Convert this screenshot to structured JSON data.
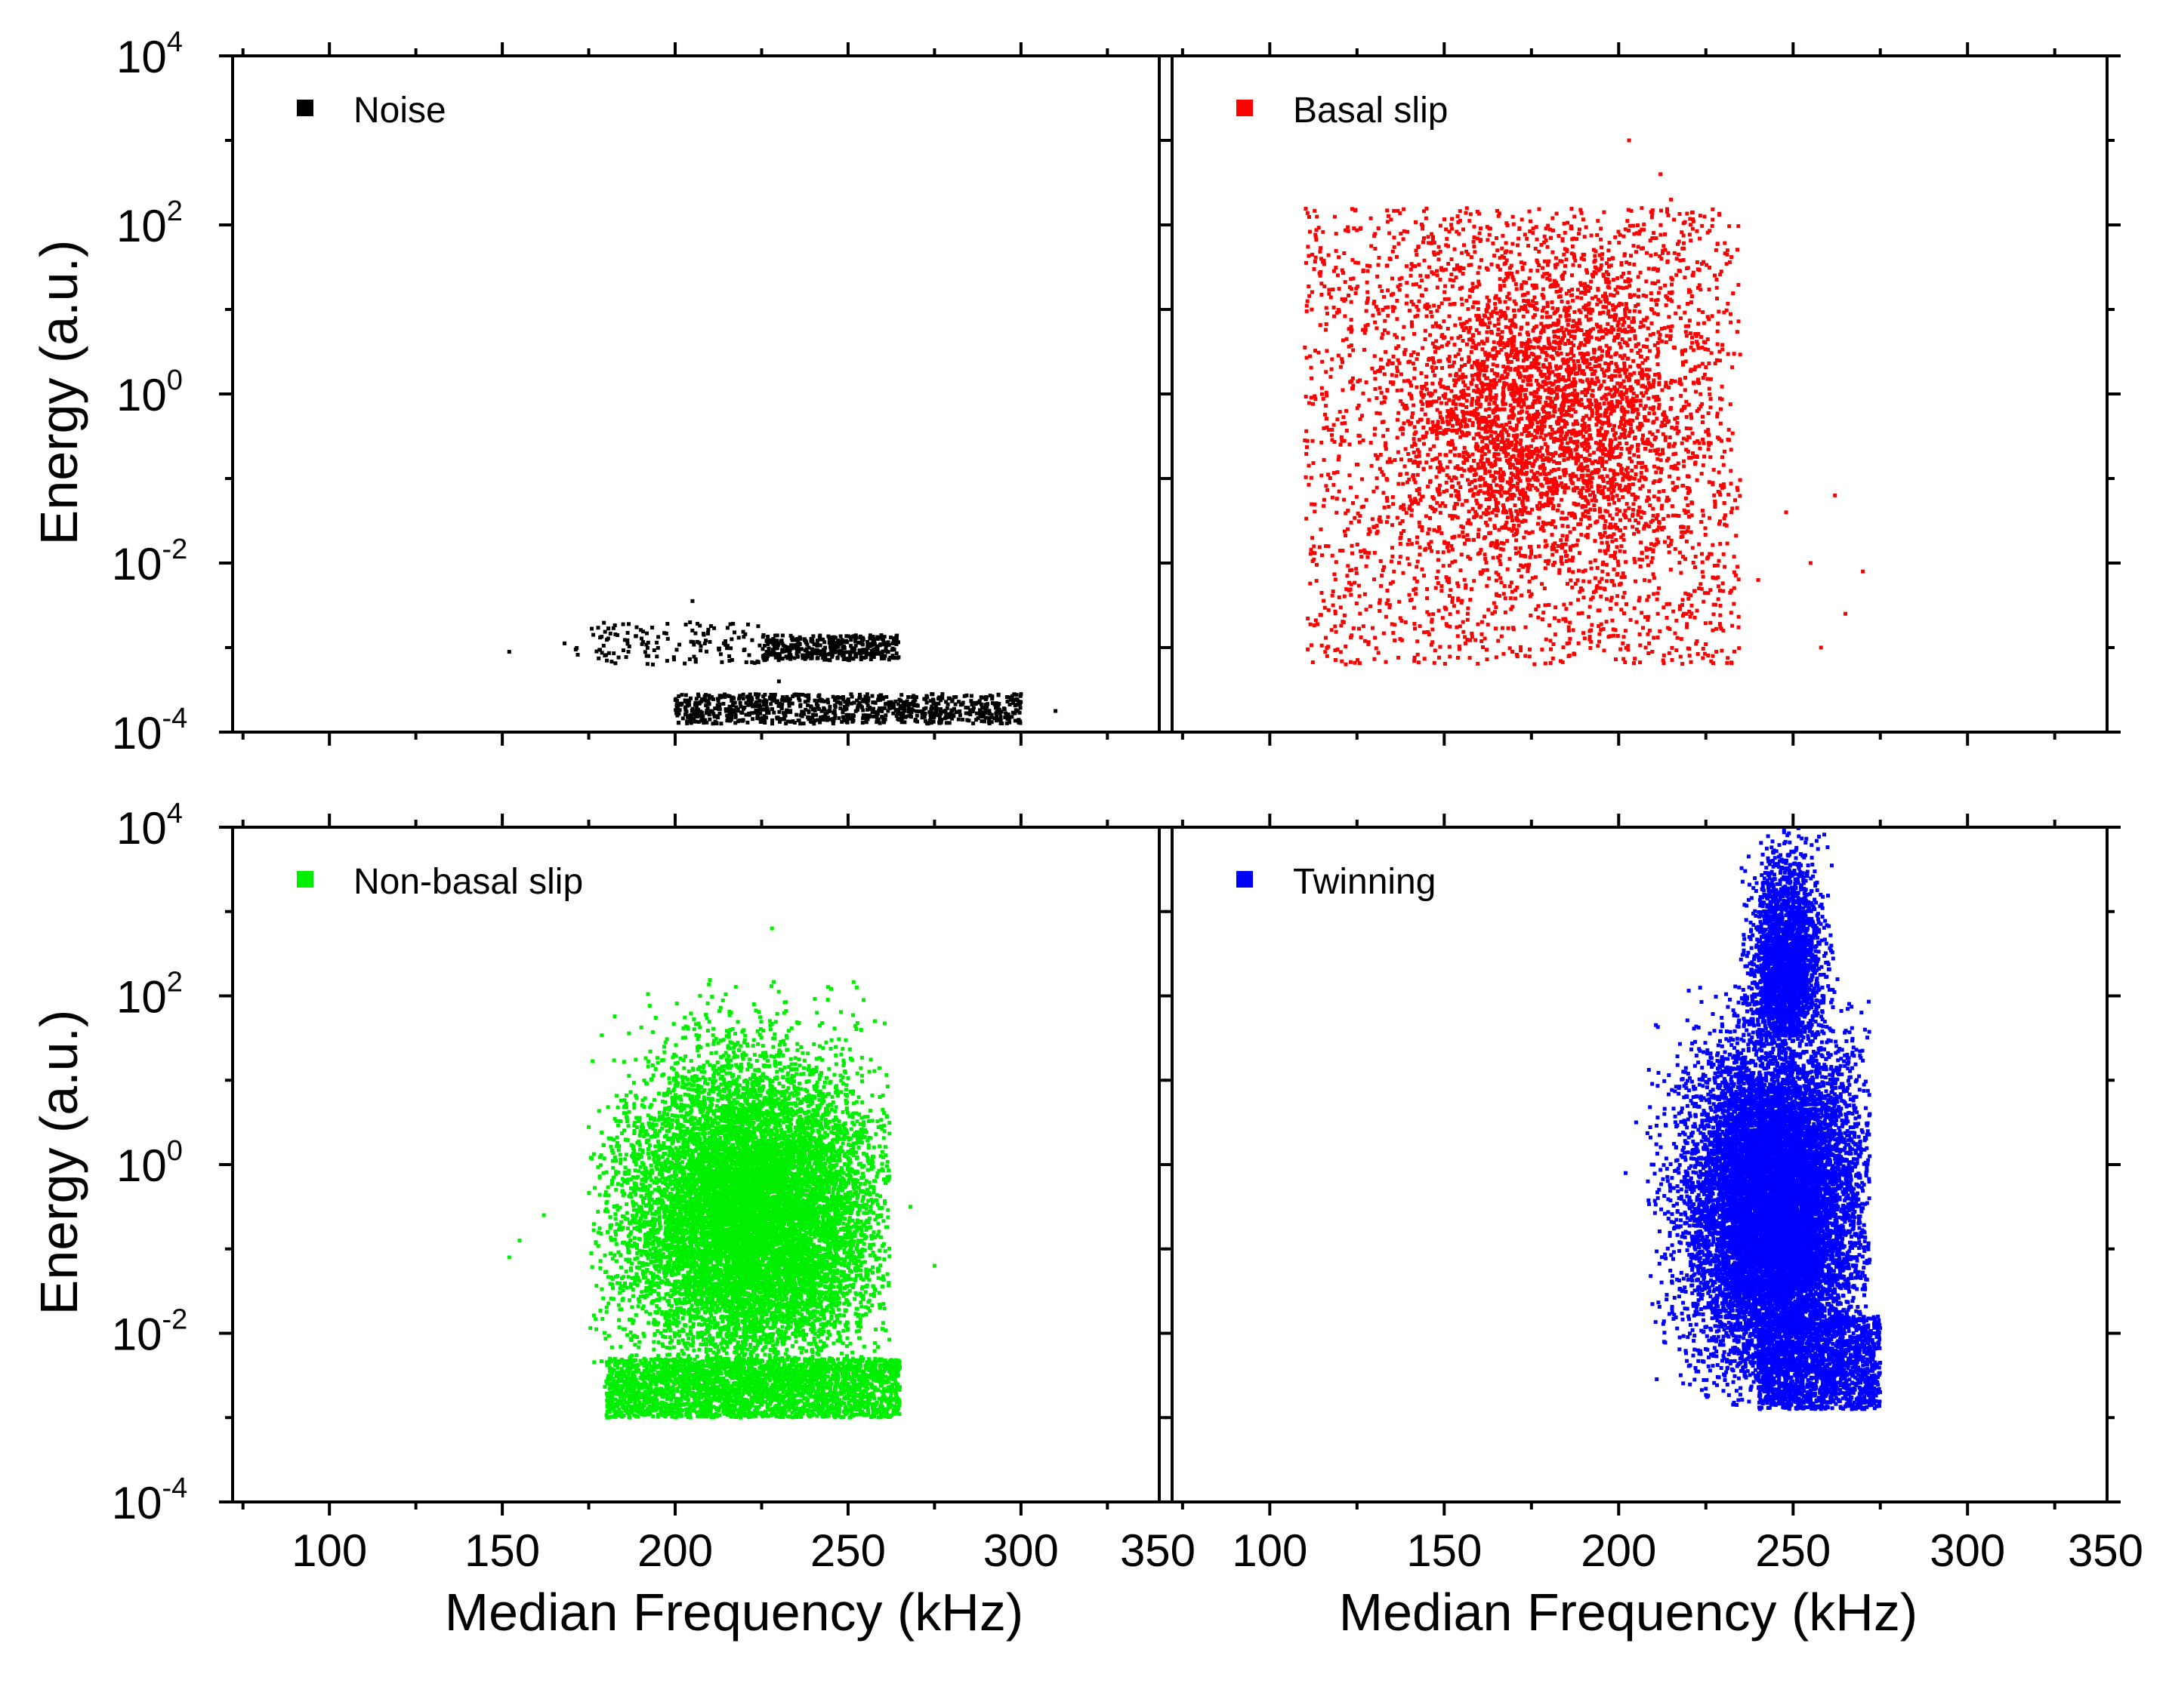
{
  "figure": {
    "xlabel": "Median Frequency (kHz)",
    "ylabel": "Energy (a.u.)"
  },
  "chart_data": [
    {
      "type": "scatter",
      "series": [
        {
          "name": "Noise",
          "color": "#000000",
          "points": 1400,
          "clusters": [
            {
              "xmin": 200,
              "xmax": 300,
              "ymin": -3.9,
              "ymax": -3.55,
              "weight": 0.62
            },
            {
              "xmin": 225,
              "xmax": 265,
              "ymin": -3.15,
              "ymax": -2.85,
              "weight": 0.28
            },
            {
              "xmin": 170,
              "xmax": 225,
              "ymin": -3.2,
              "ymax": -2.7,
              "weight": 0.1
            }
          ],
          "outliers": [
            [
              152,
              -3.05
            ],
            [
              168,
              -2.95
            ],
            [
              310,
              -3.75
            ],
            [
              205,
              -2.45
            ],
            [
              230,
              -3.4
            ]
          ]
        }
      ],
      "xlim": [
        72,
        340
      ],
      "ylim": [
        -4,
        4
      ],
      "yscale": "log",
      "xticks": [
        100,
        150,
        200,
        250,
        300,
        350
      ],
      "yticks": [
        -4,
        -2,
        0,
        2,
        4
      ],
      "ylabel": "Energy (a.u.)",
      "xlabel": ""
    },
    {
      "type": "scatter",
      "series": [
        {
          "name": "Basal slip",
          "color": "#ff0000",
          "points": 5200,
          "clusters": [
            {
              "xmin": 130,
              "xmax": 230,
              "ymin": -3.1,
              "ymax": 2.0,
              "weight": 0.55,
              "cx": 180,
              "cy": -0.2,
              "sx": 22,
              "sy": 1.0
            },
            {
              "xmin": 110,
              "xmax": 235,
              "ymin": -3.2,
              "ymax": 2.2,
              "weight": 0.45
            }
          ],
          "outliers": [
            [
              203,
              3.0
            ],
            [
              212,
              2.6
            ],
            [
              215,
              2.3
            ],
            [
              248,
              -1.4
            ],
            [
              255,
              -2.0
            ],
            [
              262,
              -1.2
            ],
            [
              265,
              -2.6
            ],
            [
              258,
              -3.0
            ],
            [
              230,
              -2.8
            ],
            [
              240,
              -2.2
            ],
            [
              270,
              -2.1
            ],
            [
              227,
              -3.1
            ]
          ]
        }
      ],
      "xlim": [
        72,
        340
      ],
      "ylim": [
        -4,
        4
      ],
      "yscale": "log",
      "xticks": [
        100,
        150,
        200,
        250,
        300,
        350
      ],
      "yticks": [
        -4,
        -2,
        0,
        2,
        4
      ]
    },
    {
      "type": "scatter",
      "series": [
        {
          "name": "Non-basal slip",
          "color": "#00ee00",
          "points": 14000,
          "clusters": [
            {
              "xmin": 175,
              "xmax": 262,
              "ymin": -3.0,
              "ymax": 2.2,
              "weight": 0.8,
              "cx": 222,
              "cy": -0.6,
              "sx": 18,
              "sy": 0.9
            },
            {
              "xmin": 180,
              "xmax": 265,
              "ymin": -3.0,
              "ymax": -2.3,
              "weight": 0.2
            }
          ],
          "outliers": [
            [
              152,
              -1.1
            ],
            [
              162,
              -0.6
            ],
            [
              228,
              2.8
            ],
            [
              275,
              -1.2
            ],
            [
              268,
              -0.5
            ],
            [
              155,
              -0.9
            ]
          ]
        }
      ],
      "xlim": [
        72,
        340
      ],
      "ylim": [
        -4,
        4
      ],
      "yscale": "log",
      "xticks": [
        100,
        150,
        200,
        250,
        300,
        350
      ],
      "yticks": [
        -4,
        -2,
        0,
        2,
        4
      ],
      "ylabel": "Energy (a.u.)",
      "xlabel": "Median Frequency (kHz)"
    },
    {
      "type": "scatter",
      "series": [
        {
          "name": "Twinning",
          "color": "#0000ff",
          "points": 16000,
          "clusters": [
            {
              "xmin": 208,
              "xmax": 272,
              "ymin": -2.85,
              "ymax": 2.2,
              "weight": 0.75,
              "cx": 245,
              "cy": -0.5,
              "sx": 12,
              "sy": 1.0
            },
            {
              "xmin": 235,
              "xmax": 262,
              "ymin": 1.5,
              "ymax": 4.0,
              "weight": 0.15,
              "cx": 248,
              "cy": 2.4,
              "sx": 5,
              "sy": 0.6
            },
            {
              "xmin": 240,
              "xmax": 275,
              "ymin": -2.9,
              "ymax": -1.8,
              "weight": 0.1
            }
          ],
          "outliers": [
            [
              202,
              -0.1
            ],
            [
              205,
              0.5
            ]
          ]
        }
      ],
      "xlim": [
        72,
        340
      ],
      "ylim": [
        -4,
        4
      ],
      "yscale": "log",
      "xticks": [
        100,
        150,
        200,
        250,
        300,
        350
      ],
      "yticks": [
        -4,
        -2,
        0,
        2,
        4
      ],
      "xlabel": "Median Frequency (kHz)"
    }
  ]
}
